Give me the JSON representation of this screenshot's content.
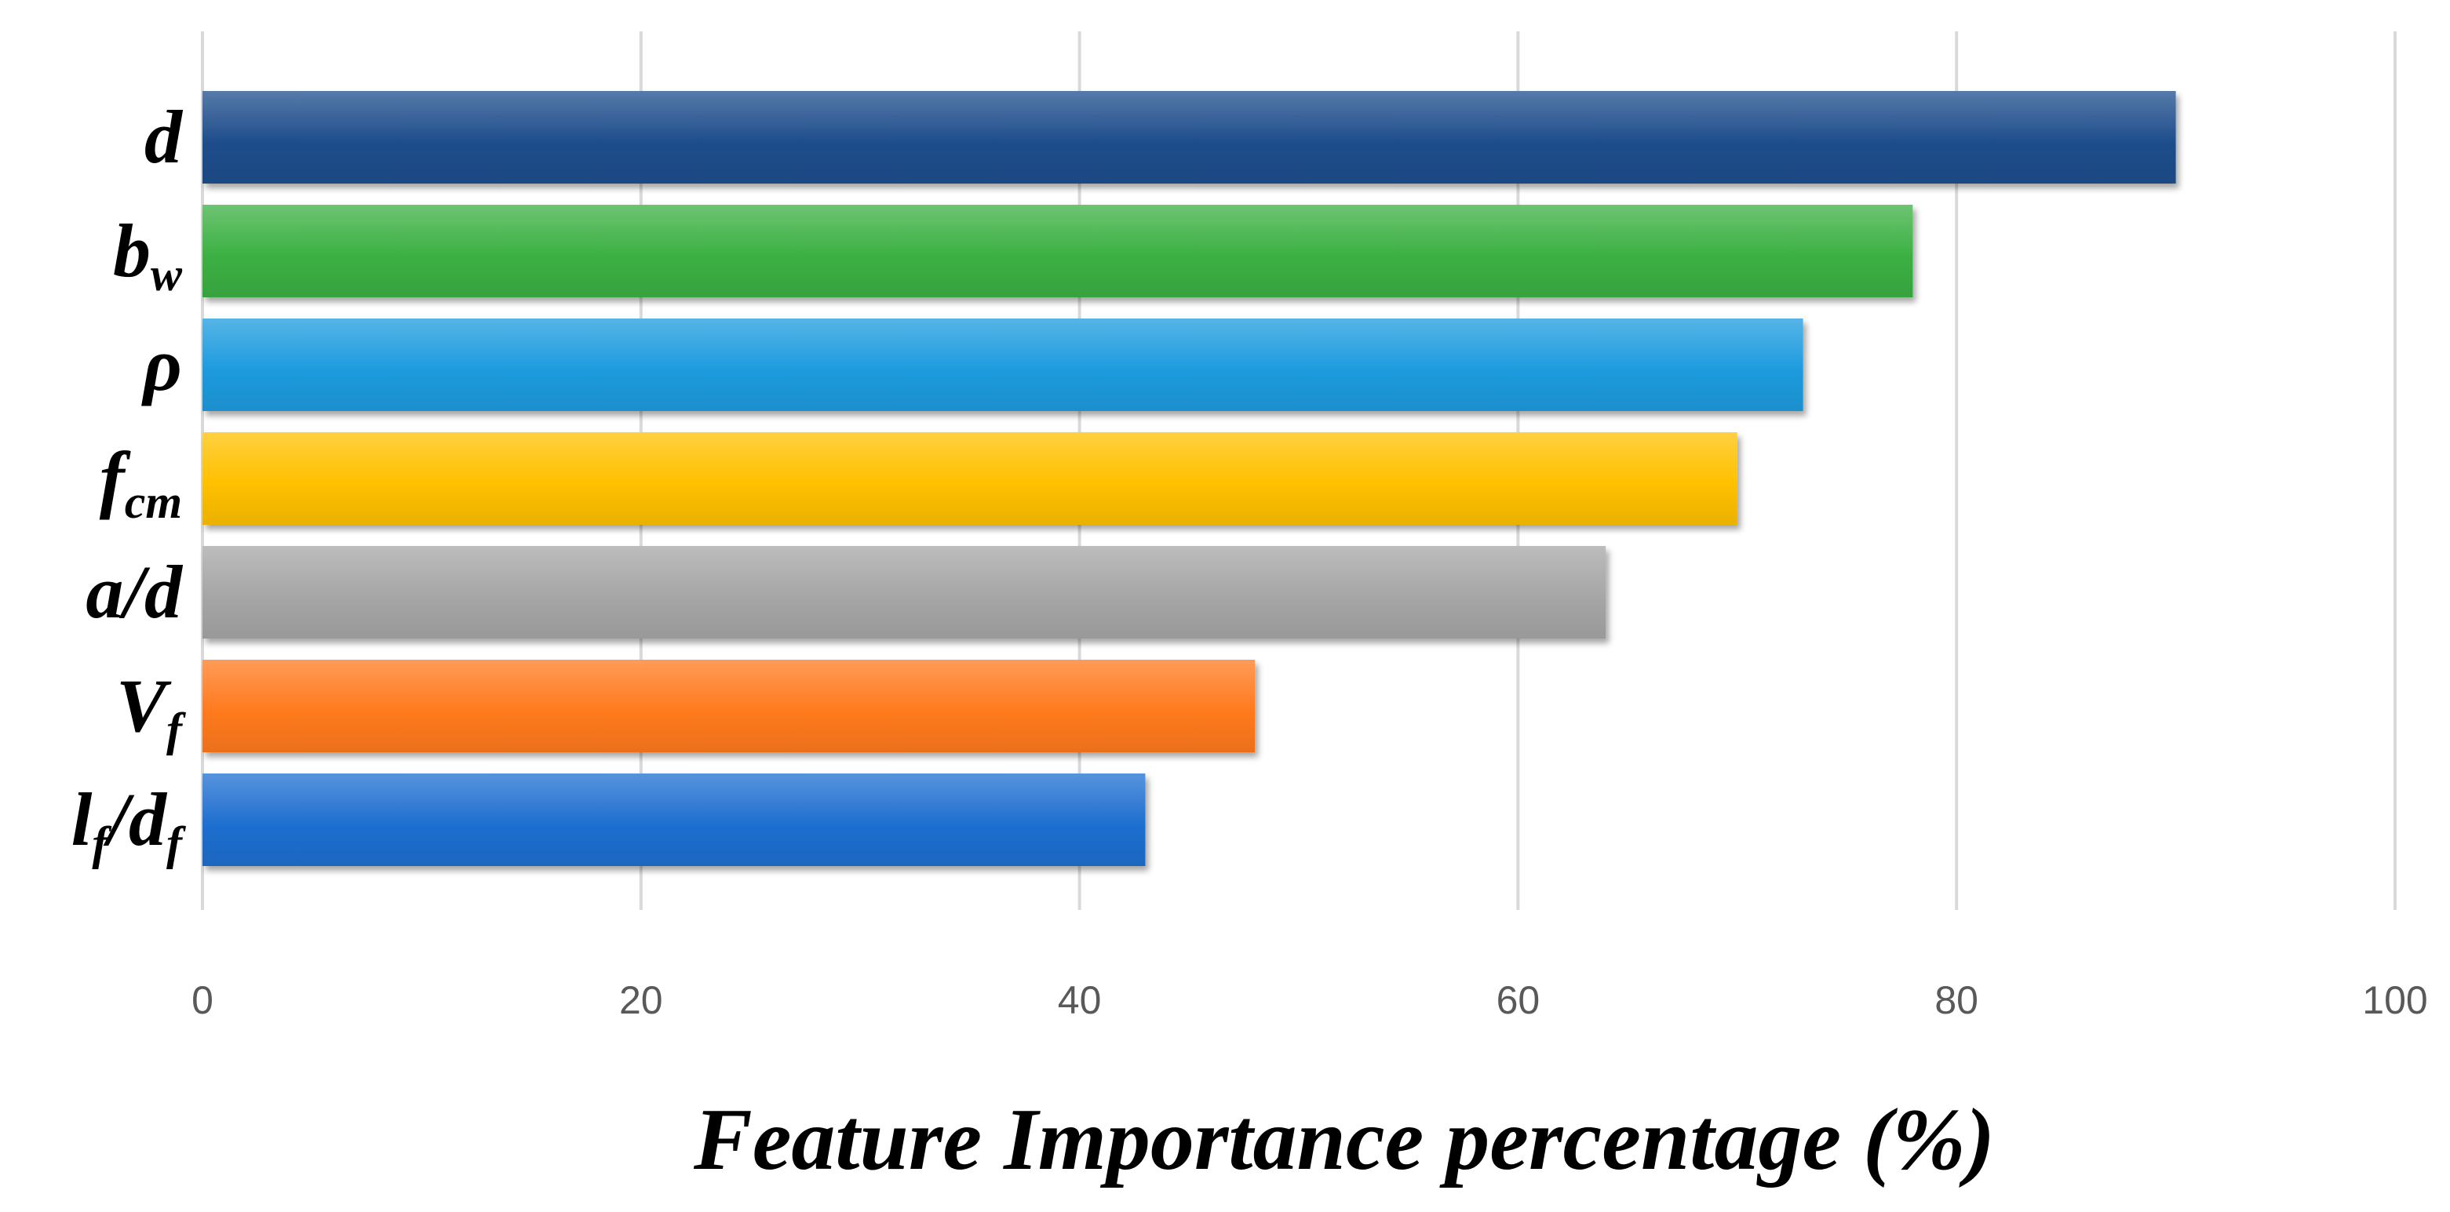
{
  "chart_data": {
    "type": "bar",
    "orientation": "horizontal",
    "categories": [
      "d",
      "bw",
      "ρ",
      "fcm",
      "a/d",
      "Vf",
      "lf/df"
    ],
    "category_labels": [
      [
        {
          "t": "d",
          "sub": false
        }
      ],
      [
        {
          "t": "b",
          "sub": false
        },
        {
          "t": "w",
          "sub": true
        }
      ],
      [
        {
          "t": "ρ",
          "sub": false
        }
      ],
      [
        {
          "t": "f",
          "sub": false
        },
        {
          "t": "cm",
          "sub": true
        }
      ],
      [
        {
          "t": "a/d",
          "sub": false
        }
      ],
      [
        {
          "t": "V",
          "sub": false
        },
        {
          "t": "f",
          "sub": true
        }
      ],
      [
        {
          "t": "l",
          "sub": false
        },
        {
          "t": "f",
          "sub": true
        },
        {
          "t": "/d",
          "sub": false
        },
        {
          "t": "f",
          "sub": true
        }
      ]
    ],
    "values": [
      90,
      78,
      73,
      70,
      64,
      48,
      43
    ],
    "colors": [
      "#1F4E8C",
      "#3CB043",
      "#1E9BDE",
      "#FFC000",
      "#A6A6A6",
      "#FF7A1F",
      "#1F6FD0"
    ],
    "xlabel": "Feature Importance percentage (%)",
    "ylabel": "",
    "title": "",
    "xlim": [
      0,
      100
    ],
    "xticks": [
      0,
      20,
      40,
      60,
      80,
      100
    ],
    "grid": "vertical"
  }
}
